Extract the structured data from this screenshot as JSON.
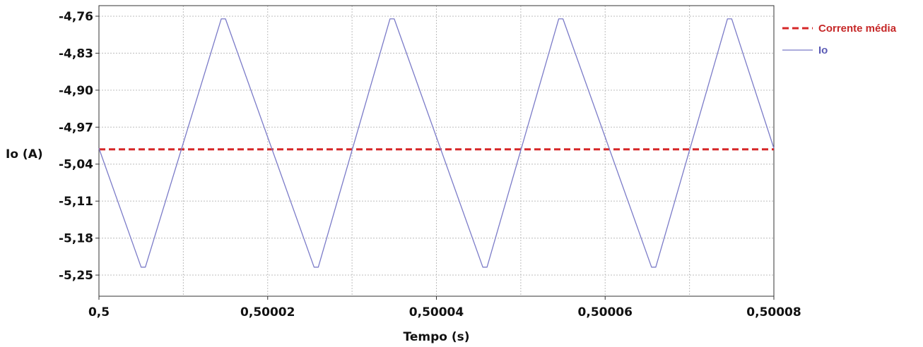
{
  "chart_data": {
    "type": "line",
    "title": "",
    "xlabel": "Tempo (s)",
    "ylabel": "Io (A)",
    "xlim": [
      0.5,
      0.50008
    ],
    "ylim": [
      -5.29,
      -4.74
    ],
    "x_ticks": [
      0.5,
      0.50002,
      0.50004,
      0.50006,
      0.50008
    ],
    "x_tick_labels": [
      "0,5",
      "0,50002",
      "0,50004",
      "0,50006",
      "0,50008"
    ],
    "x_minor_grid": [
      0.50001,
      0.50003,
      0.50005,
      0.50007
    ],
    "y_ticks": [
      -4.76,
      -4.83,
      -4.9,
      -4.97,
      -5.04,
      -5.11,
      -5.18,
      -5.25
    ],
    "y_tick_labels": [
      "-4,76",
      "-4,83",
      "-4,90",
      "-4,97",
      "-5,04",
      "-5,11",
      "-5,18",
      "-5,25"
    ],
    "grid": true,
    "legend_position": "top-right, outside plot",
    "series": [
      {
        "name": "Corrente média",
        "style": "dashed",
        "color": "#d62728",
        "x": [
          0.5,
          0.50008
        ],
        "y": [
          -5.012,
          -5.012
        ]
      },
      {
        "name": "Io",
        "style": "solid",
        "color": "#7b7bc8",
        "x": [
          0.5,
          0.500005,
          0.5000055,
          0.5000145,
          0.500015,
          0.5000255,
          0.500026,
          0.5000345,
          0.500035,
          0.5000455,
          0.500046,
          0.5000545,
          0.500055,
          0.5000655,
          0.500066,
          0.5000745,
          0.500075,
          0.50008
        ],
        "y": [
          -5.01,
          -5.235,
          -5.235,
          -4.765,
          -4.765,
          -5.235,
          -5.235,
          -4.765,
          -4.765,
          -5.235,
          -5.235,
          -4.765,
          -4.765,
          -5.235,
          -5.235,
          -4.765,
          -4.765,
          -5.01
        ]
      }
    ]
  }
}
